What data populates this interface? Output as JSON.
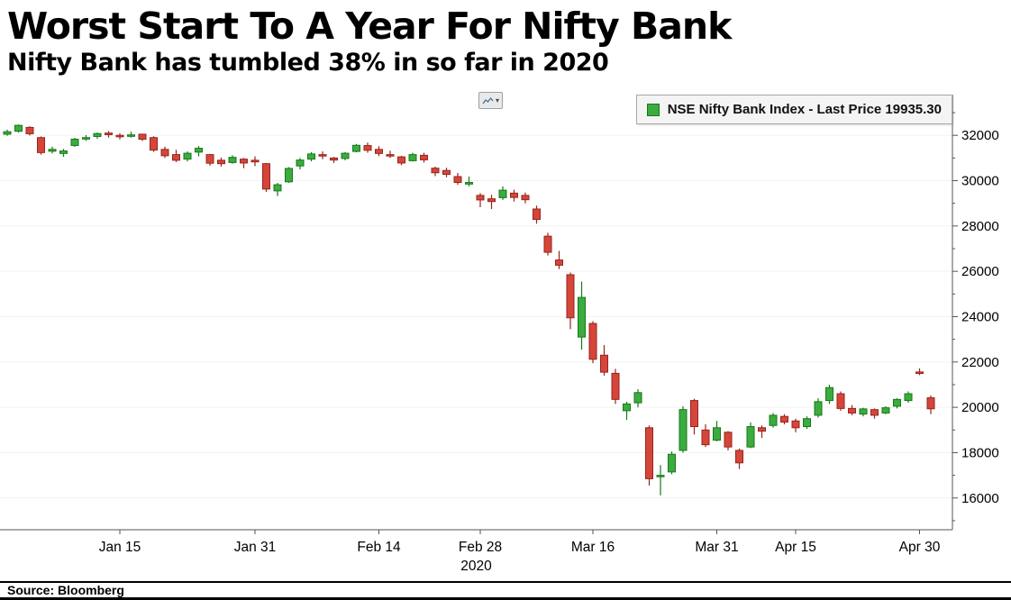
{
  "header": {
    "title": "Worst Start To A Year For Nifty Bank",
    "subtitle": "Nifty Bank has tumbled 38% in so far in 2020"
  },
  "toolbar": {
    "chart_button": "chart-options"
  },
  "legend": {
    "text": "NSE Nifty Bank Index - Last Price 19935.30"
  },
  "footer": {
    "source": "Source: Bloomberg"
  },
  "chart_data": {
    "type": "candlestick",
    "title": "Worst Start To A Year For Nifty Bank",
    "subtitle": "Nifty Bank has tumbled 38% in so far in 2020",
    "series_name": "NSE Nifty Bank Index",
    "last_price": 19935.3,
    "year_label": "2020",
    "ylim": [
      14600,
      33400
    ],
    "yticks": [
      16000,
      18000,
      20000,
      22000,
      24000,
      26000,
      28000,
      30000,
      32000
    ],
    "minor_tick_step": 1000,
    "xticks": [
      "Jan 15",
      "Jan 31",
      "Feb 14",
      "Feb 28",
      "Mar 16",
      "Mar 31",
      "Apr 15",
      "Apr 30"
    ],
    "legend_position": "top-right",
    "grid": "faint-horizontal",
    "colors": {
      "up_fill": "#3cab40",
      "up_stroke": "#157a19",
      "down_fill": "#d6453a",
      "down_stroke": "#96251c",
      "axis": "#555555",
      "text": "#000000"
    },
    "candles": [
      [
        "Jan 1",
        32050,
        32250,
        31980,
        32160
      ],
      [
        "Jan 2",
        32180,
        32480,
        32120,
        32440
      ],
      [
        "Jan 3",
        32350,
        32400,
        31990,
        32070
      ],
      [
        "Jan 6",
        31900,
        31950,
        31150,
        31240
      ],
      [
        "Jan 7",
        31300,
        31500,
        31200,
        31380
      ],
      [
        "Jan 8",
        31200,
        31400,
        31050,
        31310
      ],
      [
        "Jan 9",
        31550,
        31890,
        31500,
        31830
      ],
      [
        "Jan 10",
        31870,
        32010,
        31750,
        31900
      ],
      [
        "Jan 13",
        31950,
        32120,
        31850,
        32080
      ],
      [
        "Jan 14",
        32100,
        32190,
        31900,
        32030
      ],
      [
        "Jan 15",
        32000,
        32090,
        31820,
        31950
      ],
      [
        "Jan 16",
        32010,
        32160,
        31900,
        32020
      ],
      [
        "Jan 17",
        32050,
        32070,
        31750,
        31830
      ],
      [
        "Jan 20",
        31900,
        31960,
        31270,
        31350
      ],
      [
        "Jan 21",
        31380,
        31500,
        31000,
        31100
      ],
      [
        "Jan 22",
        31150,
        31360,
        30820,
        30900
      ],
      [
        "Jan 23",
        30950,
        31290,
        30850,
        31210
      ],
      [
        "Jan 24",
        31260,
        31530,
        31070,
        31430
      ],
      [
        "Jan 27",
        31150,
        31180,
        30660,
        30770
      ],
      [
        "Jan 28",
        30900,
        31020,
        30620,
        30750
      ],
      [
        "Jan 29",
        30800,
        31120,
        30750,
        31030
      ],
      [
        "Jan 30",
        30950,
        31000,
        30550,
        30780
      ],
      [
        "Jan 31",
        30900,
        31070,
        30640,
        30830
      ],
      [
        "Feb 1",
        30750,
        30780,
        29500,
        29630
      ],
      [
        "Feb 3",
        29550,
        29900,
        29320,
        29820
      ],
      [
        "Feb 4",
        29950,
        30600,
        29900,
        30540
      ],
      [
        "Feb 5",
        30650,
        31000,
        30500,
        30910
      ],
      [
        "Feb 6",
        30950,
        31260,
        30850,
        31180
      ],
      [
        "Feb 7",
        31150,
        31290,
        30950,
        31090
      ],
      [
        "Feb 10",
        31000,
        31050,
        30780,
        30910
      ],
      [
        "Feb 11",
        30980,
        31260,
        30900,
        31210
      ],
      [
        "Feb 12",
        31290,
        31620,
        31250,
        31560
      ],
      [
        "Feb 13",
        31550,
        31680,
        31230,
        31340
      ],
      [
        "Feb 14",
        31380,
        31520,
        31080,
        31200
      ],
      [
        "Feb 17",
        31150,
        31320,
        31000,
        31090
      ],
      [
        "Feb 18",
        31050,
        31100,
        30680,
        30780
      ],
      [
        "Feb 19",
        30880,
        31230,
        30850,
        31150
      ],
      [
        "Feb 20",
        31120,
        31230,
        30800,
        30920
      ],
      [
        "Feb 24",
        30550,
        30620,
        30200,
        30350
      ],
      [
        "Feb 25",
        30450,
        30570,
        30150,
        30280
      ],
      [
        "Feb 26",
        30180,
        30340,
        29820,
        29920
      ],
      [
        "Feb 27",
        29850,
        30180,
        29750,
        29920
      ],
      [
        "Feb 28",
        29350,
        29450,
        28830,
        29150
      ],
      [
        "Mar 2",
        29200,
        29380,
        28750,
        29080
      ],
      [
        "Mar 3",
        29250,
        29750,
        29150,
        29580
      ],
      [
        "Mar 4",
        29450,
        29600,
        29080,
        29260
      ],
      [
        "Mar 5",
        29350,
        29480,
        29000,
        29160
      ],
      [
        "Mar 6",
        28750,
        28900,
        28100,
        28290
      ],
      [
        "Mar 9",
        27550,
        27700,
        26700,
        26840
      ],
      [
        "Mar 11",
        26500,
        26900,
        26100,
        26270
      ],
      [
        "Mar 12",
        25850,
        25950,
        23450,
        23950
      ],
      [
        "Mar 13",
        23100,
        25550,
        22550,
        24850
      ],
      [
        "Mar 16",
        23700,
        23800,
        21950,
        22120
      ],
      [
        "Mar 17",
        22300,
        22750,
        21400,
        21550
      ],
      [
        "Mar 18",
        21500,
        21700,
        20150,
        20350
      ],
      [
        "Mar 19",
        19850,
        20250,
        19450,
        20150
      ],
      [
        "Mar 20",
        20200,
        20800,
        20000,
        20650
      ],
      [
        "Mar 23",
        19100,
        19200,
        16550,
        16850
      ],
      [
        "Mar 24",
        16950,
        17450,
        16116,
        17000
      ],
      [
        "Mar 25",
        17150,
        18050,
        17050,
        17930
      ],
      [
        "Mar 26",
        18100,
        20050,
        18000,
        19900
      ],
      [
        "Mar 27",
        20300,
        20380,
        18800,
        19150
      ],
      [
        "Mar 30",
        19000,
        19250,
        18250,
        18350
      ],
      [
        "Mar 31",
        18550,
        19400,
        18500,
        19100
      ],
      [
        "Apr 1",
        18900,
        18950,
        18100,
        18250
      ],
      [
        "Apr 3",
        18100,
        18180,
        17280,
        17550
      ],
      [
        "Apr 7",
        18250,
        19330,
        18200,
        19150
      ],
      [
        "Apr 8",
        19100,
        19200,
        18650,
        18950
      ],
      [
        "Apr 9",
        19200,
        19750,
        19100,
        19650
      ],
      [
        "Apr 13",
        19600,
        19700,
        19250,
        19350
      ],
      [
        "Apr 15",
        19400,
        19500,
        18900,
        19100
      ],
      [
        "Apr 16",
        19150,
        19600,
        19050,
        19500
      ],
      [
        "Apr 17",
        19650,
        20400,
        19550,
        20250
      ],
      [
        "Apr 20",
        20300,
        21000,
        20150,
        20870
      ],
      [
        "Apr 21",
        20600,
        20700,
        19850,
        19950
      ],
      [
        "Apr 22",
        19950,
        20100,
        19650,
        19750
      ],
      [
        "Apr 23",
        19700,
        19980,
        19600,
        19930
      ],
      [
        "Apr 24",
        19900,
        19950,
        19500,
        19650
      ],
      [
        "Apr 27",
        19750,
        20050,
        19700,
        19980
      ],
      [
        "Apr 28",
        20050,
        20400,
        19950,
        20350
      ],
      [
        "Apr 29",
        20300,
        20700,
        20200,
        20600
      ],
      [
        "Apr 30",
        21560,
        21720,
        21420,
        21534
      ],
      [
        "May 4",
        20420,
        20520,
        19700,
        19935.3
      ]
    ]
  }
}
